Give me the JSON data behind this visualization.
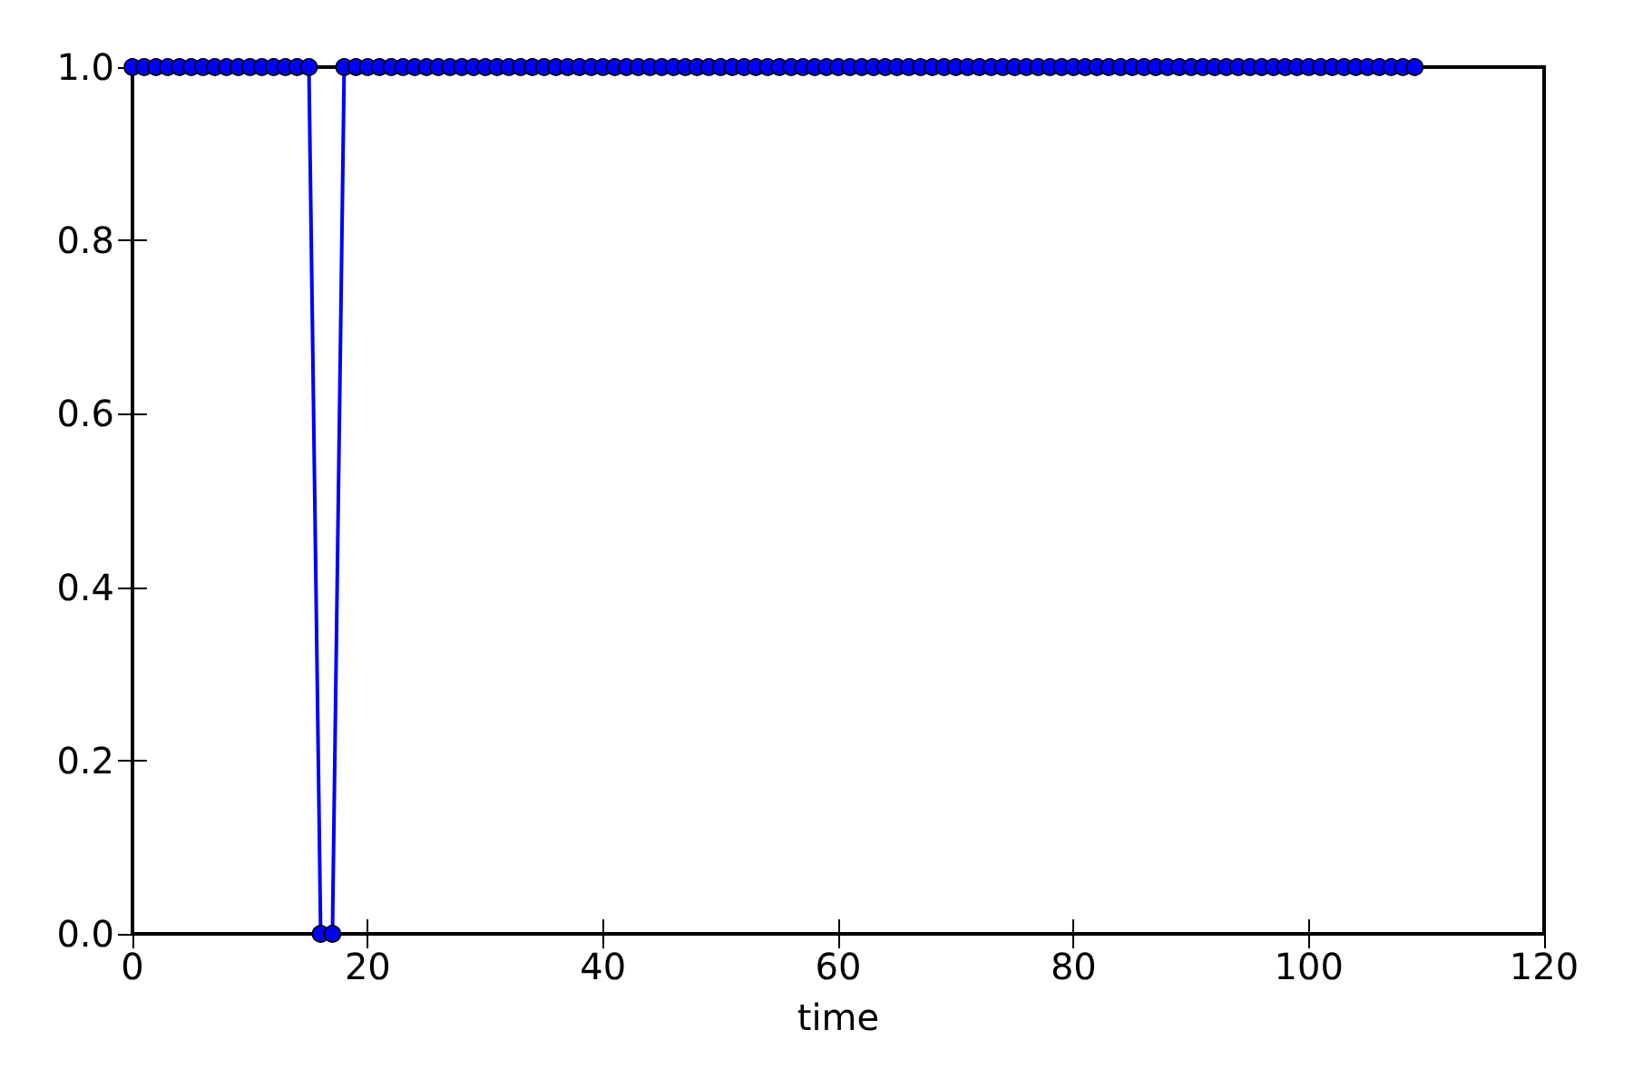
{
  "chart_data": {
    "type": "line",
    "xlabel": "time",
    "x": [
      0,
      1,
      2,
      3,
      4,
      5,
      6,
      7,
      8,
      9,
      10,
      11,
      12,
      13,
      14,
      15,
      16,
      17,
      18,
      19,
      20,
      21,
      22,
      23,
      24,
      25,
      26,
      27,
      28,
      29,
      30,
      31,
      32,
      33,
      34,
      35,
      36,
      37,
      38,
      39,
      40,
      41,
      42,
      43,
      44,
      45,
      46,
      47,
      48,
      49,
      50,
      51,
      52,
      53,
      54,
      55,
      56,
      57,
      58,
      59,
      60,
      61,
      62,
      63,
      64,
      65,
      66,
      67,
      68,
      69,
      70,
      71,
      72,
      73,
      74,
      75,
      76,
      77,
      78,
      79,
      80,
      81,
      82,
      83,
      84,
      85,
      86,
      87,
      88,
      89,
      90,
      91,
      92,
      93,
      94,
      95,
      96,
      97,
      98,
      99,
      100,
      101,
      102,
      103,
      104,
      105,
      106,
      107,
      108,
      109
    ],
    "series": [
      {
        "color": "#0000ff",
        "values": [
          1,
          1,
          1,
          1,
          1,
          1,
          1,
          1,
          1,
          1,
          1,
          1,
          1,
          1,
          1,
          1,
          0,
          0,
          1,
          1,
          1,
          1,
          1,
          1,
          1,
          1,
          1,
          1,
          1,
          1,
          1,
          1,
          1,
          1,
          1,
          1,
          1,
          1,
          1,
          1,
          1,
          1,
          1,
          1,
          1,
          1,
          1,
          1,
          1,
          1,
          1,
          1,
          1,
          1,
          1,
          1,
          1,
          1,
          1,
          1,
          1,
          1,
          1,
          1,
          1,
          1,
          1,
          1,
          1,
          1,
          1,
          1,
          1,
          1,
          1,
          1,
          1,
          1,
          1,
          1,
          1,
          1,
          1,
          1,
          1,
          1,
          1,
          1,
          1,
          1,
          1,
          1,
          1,
          1,
          1,
          1,
          1,
          1,
          1,
          1,
          1,
          1,
          1,
          1,
          1,
          1,
          1,
          1,
          1,
          1
        ]
      }
    ],
    "xlim": [
      0,
      120
    ],
    "xticks": [
      0,
      20,
      40,
      60,
      80,
      100,
      120
    ],
    "ylim": [
      0,
      1
    ],
    "yticks": [
      {
        "value": 0,
        "label": "0.0"
      },
      {
        "value": 0.2,
        "label": "0.2"
      },
      {
        "value": 0.4,
        "label": "0.4"
      },
      {
        "value": 0.6,
        "label": "0.6"
      },
      {
        "value": 0.8,
        "label": "0.8"
      },
      {
        "value": 1,
        "label": "1.0"
      }
    ],
    "marker": "circle",
    "line_style": "solid"
  }
}
